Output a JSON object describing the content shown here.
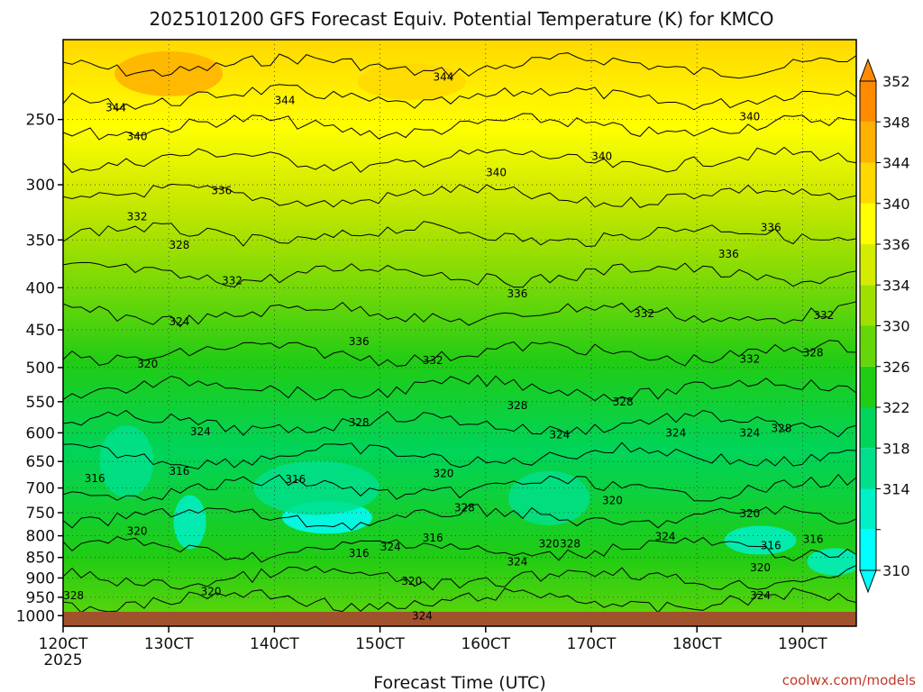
{
  "chart_data": {
    "type": "contour",
    "title": "2025101200 GFS Forecast Equiv. Potential Temperature (K) for KMCO",
    "xlabel": "Forecast Time (UTC)",
    "ylabel": "",
    "x_ticks": [
      "120CT",
      "130CT",
      "140CT",
      "150CT",
      "160CT",
      "170CT",
      "180CT",
      "190CT"
    ],
    "x_year": "2025",
    "y_ticks": [
      250,
      300,
      350,
      400,
      450,
      500,
      550,
      600,
      650,
      700,
      750,
      800,
      850,
      900,
      950,
      1000
    ],
    "y_scale": "log",
    "ylim": [
      200,
      1030
    ],
    "grid": true,
    "colorbar": {
      "levels": [
        310,
        314,
        318,
        322,
        326,
        330,
        334,
        336,
        340,
        344,
        348,
        352
      ],
      "colors": [
        "#00ffff",
        "#00f0c8",
        "#00e08c",
        "#00d45a",
        "#20cc14",
        "#64d60a",
        "#a0e000",
        "#d4ec00",
        "#ffff00",
        "#ffd800",
        "#ffb000",
        "#ff8c00"
      ],
      "extend": "both",
      "placement": "right"
    },
    "contour_labels": [
      {
        "t": "344",
        "x": 12.5,
        "p": 242
      },
      {
        "t": "340",
        "x": 12.7,
        "p": 262
      },
      {
        "t": "336",
        "x": 13.5,
        "p": 305
      },
      {
        "t": "332",
        "x": 12.7,
        "p": 328
      },
      {
        "t": "328",
        "x": 13.1,
        "p": 355
      },
      {
        "t": "332",
        "x": 13.6,
        "p": 392
      },
      {
        "t": "324",
        "x": 13.1,
        "p": 440
      },
      {
        "t": "320",
        "x": 12.8,
        "p": 495
      },
      {
        "t": "324",
        "x": 13.3,
        "p": 598
      },
      {
        "t": "316",
        "x": 12.3,
        "p": 682
      },
      {
        "t": "316",
        "x": 13.1,
        "p": 668
      },
      {
        "t": "320",
        "x": 12.7,
        "p": 790
      },
      {
        "t": "320",
        "x": 13.4,
        "p": 935
      },
      {
        "t": "328",
        "x": 12.1,
        "p": 945
      },
      {
        "t": "344",
        "x": 14.1,
        "p": 237
      },
      {
        "t": "344",
        "x": 15.6,
        "p": 222
      },
      {
        "t": "340",
        "x": 16.1,
        "p": 290
      },
      {
        "t": "340",
        "x": 17.1,
        "p": 277
      },
      {
        "t": "340",
        "x": 18.5,
        "p": 248
      },
      {
        "t": "336",
        "x": 16.3,
        "p": 407
      },
      {
        "t": "336",
        "x": 14.8,
        "p": 465
      },
      {
        "t": "336",
        "x": 18.3,
        "p": 364
      },
      {
        "t": "336",
        "x": 18.7,
        "p": 338
      },
      {
        "t": "332",
        "x": 15.5,
        "p": 490
      },
      {
        "t": "332",
        "x": 17.5,
        "p": 430
      },
      {
        "t": "332",
        "x": 18.5,
        "p": 488
      },
      {
        "t": "332",
        "x": 19.2,
        "p": 432
      },
      {
        "t": "328",
        "x": 14.8,
        "p": 583
      },
      {
        "t": "328",
        "x": 16.3,
        "p": 556
      },
      {
        "t": "328",
        "x": 17.3,
        "p": 550
      },
      {
        "t": "328",
        "x": 19.1,
        "p": 480
      },
      {
        "t": "328",
        "x": 18.8,
        "p": 593
      },
      {
        "t": "324",
        "x": 16.7,
        "p": 603
      },
      {
        "t": "324",
        "x": 17.8,
        "p": 600
      },
      {
        "t": "324",
        "x": 18.5,
        "p": 600
      },
      {
        "t": "324",
        "x": 17.7,
        "p": 802
      },
      {
        "t": "324",
        "x": 16.3,
        "p": 860
      },
      {
        "t": "324",
        "x": 15.1,
        "p": 825
      },
      {
        "t": "324",
        "x": 15.4,
        "p": 1000
      },
      {
        "t": "324",
        "x": 18.6,
        "p": 945
      },
      {
        "t": "320",
        "x": 15.6,
        "p": 672
      },
      {
        "t": "320",
        "x": 17.2,
        "p": 725
      },
      {
        "t": "320",
        "x": 18.5,
        "p": 752
      },
      {
        "t": "320",
        "x": 16.6,
        "p": 818
      },
      {
        "t": "320",
        "x": 15.3,
        "p": 908
      },
      {
        "t": "320",
        "x": 18.6,
        "p": 875
      },
      {
        "t": "316",
        "x": 14.2,
        "p": 683
      },
      {
        "t": "316",
        "x": 14.8,
        "p": 840
      },
      {
        "t": "316",
        "x": 15.5,
        "p": 805
      },
      {
        "t": "316",
        "x": 18.7,
        "p": 822
      },
      {
        "t": "316",
        "x": 19.1,
        "p": 808
      },
      {
        "t": "328",
        "x": 15.8,
        "p": 740
      },
      {
        "t": "328",
        "x": 16.8,
        "p": 818
      }
    ]
  },
  "credit": "coolwx.com/models"
}
